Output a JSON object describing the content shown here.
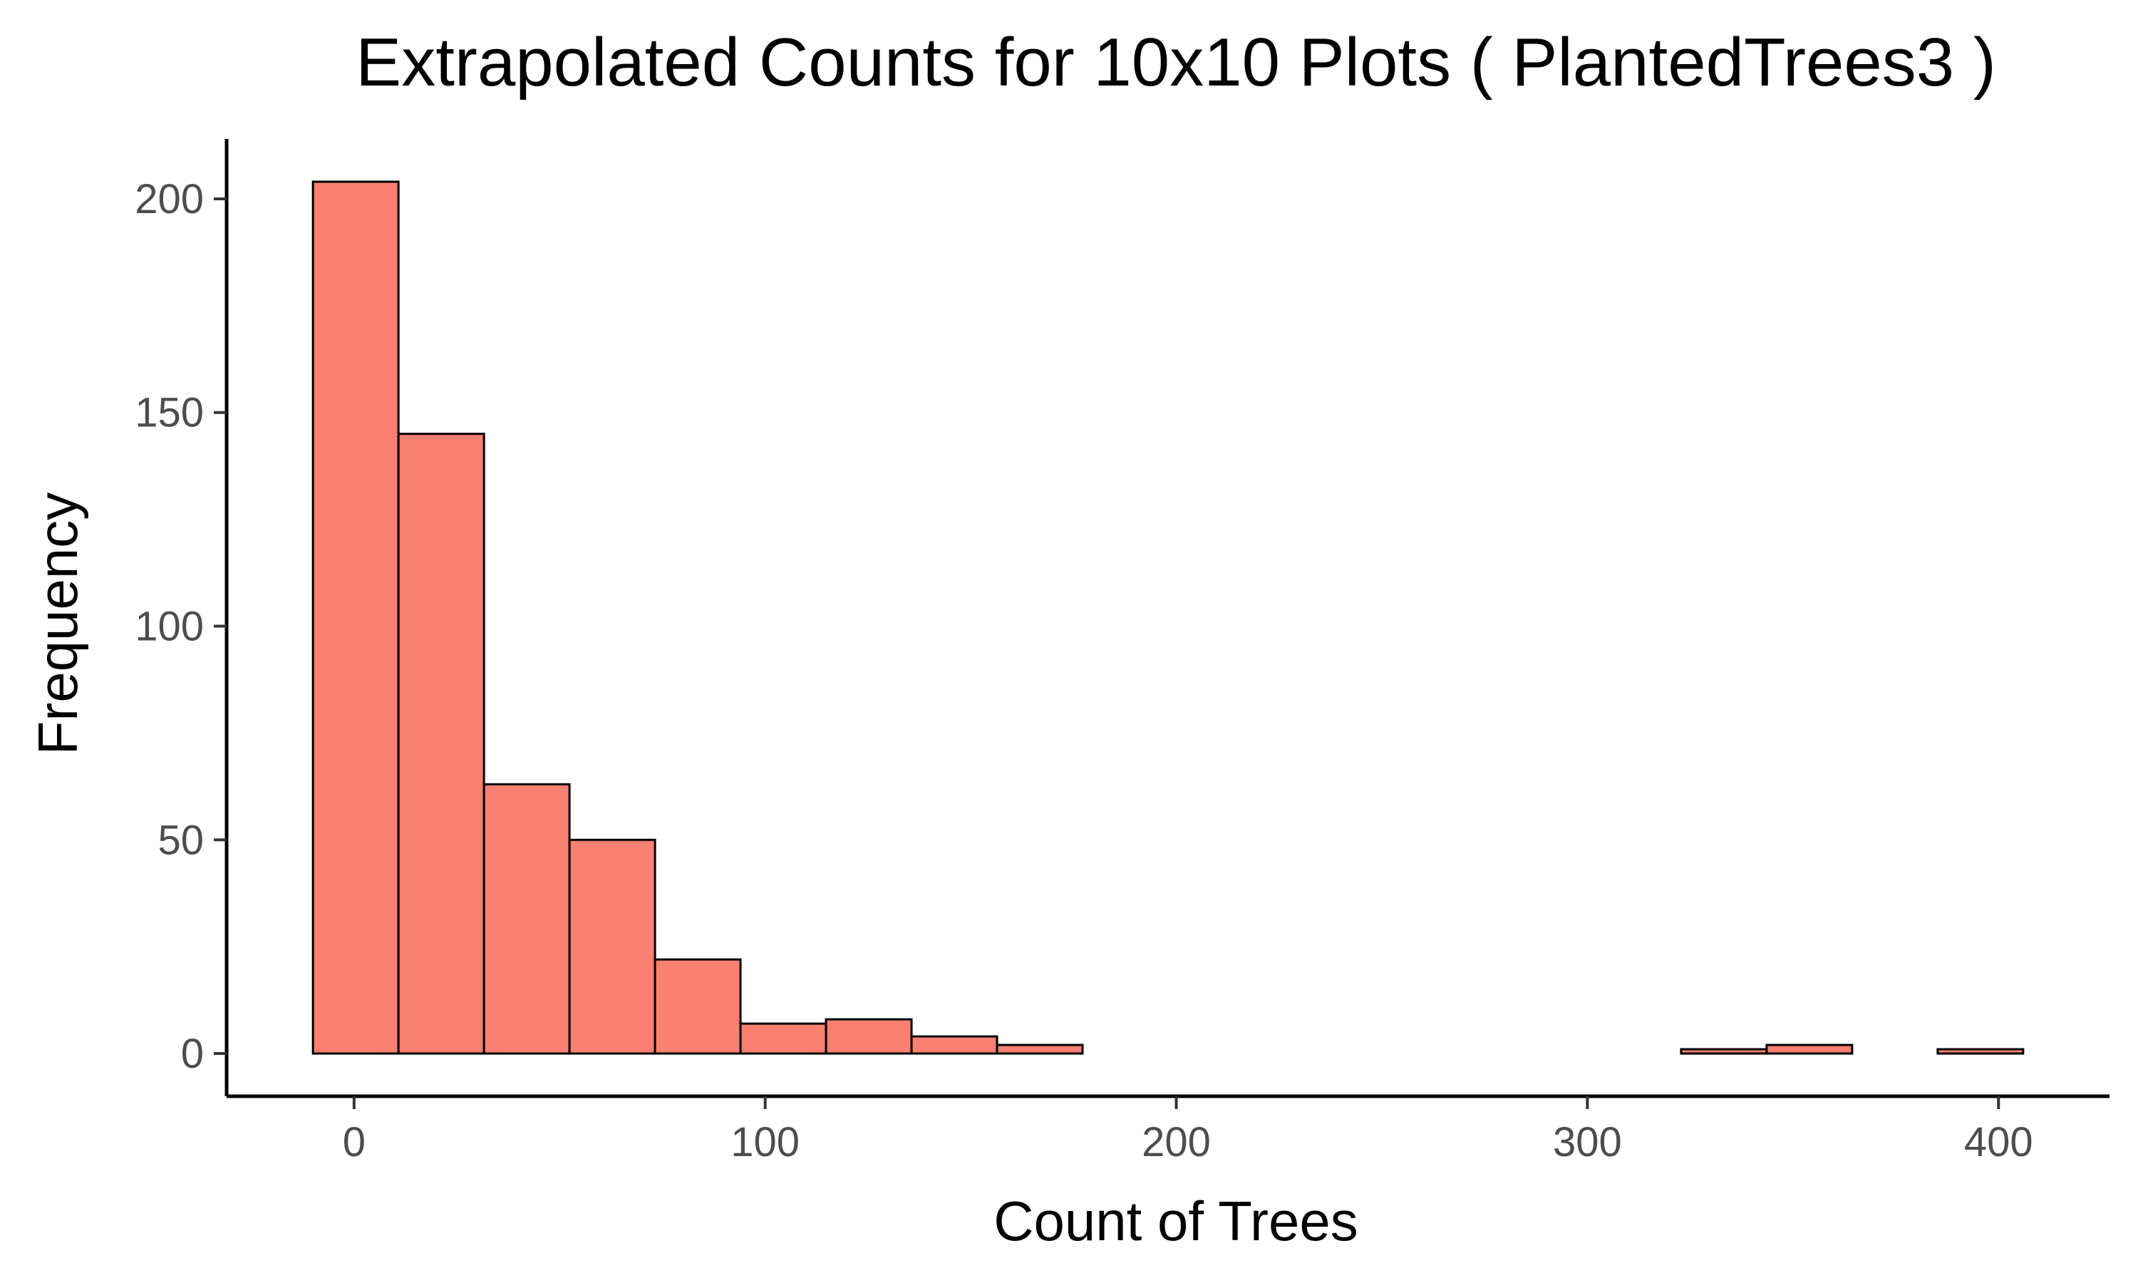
{
  "chart_data": {
    "type": "bar",
    "title": "Extrapolated Counts for 10x10 Plots ( PlantedTrees3 )",
    "xlabel": "Count of Trees",
    "ylabel": "Frequency",
    "bins": [
      {
        "x0": -10,
        "x1": 10.8,
        "count": 204
      },
      {
        "x0": 10.8,
        "x1": 31.6,
        "count": 145
      },
      {
        "x0": 31.6,
        "x1": 52.4,
        "count": 63
      },
      {
        "x0": 52.4,
        "x1": 73.2,
        "count": 50
      },
      {
        "x0": 73.2,
        "x1": 94.0,
        "count": 22
      },
      {
        "x0": 94.0,
        "x1": 114.8,
        "count": 7
      },
      {
        "x0": 114.8,
        "x1": 135.6,
        "count": 8
      },
      {
        "x0": 135.6,
        "x1": 156.4,
        "count": 4
      },
      {
        "x0": 156.4,
        "x1": 177.2,
        "count": 2
      },
      {
        "x0": 177.2,
        "x1": 198.0,
        "count": 0
      },
      {
        "x0": 198.0,
        "x1": 218.8,
        "count": 0
      },
      {
        "x0": 218.8,
        "x1": 239.6,
        "count": 0
      },
      {
        "x0": 239.6,
        "x1": 260.4,
        "count": 0
      },
      {
        "x0": 260.4,
        "x1": 281.2,
        "count": 0
      },
      {
        "x0": 281.2,
        "x1": 302.0,
        "count": 0
      },
      {
        "x0": 302.0,
        "x1": 322.8,
        "count": 0
      },
      {
        "x0": 322.8,
        "x1": 343.6,
        "count": 1
      },
      {
        "x0": 343.6,
        "x1": 364.4,
        "count": 2
      },
      {
        "x0": 364.4,
        "x1": 385.2,
        "count": 0
      },
      {
        "x0": 385.2,
        "x1": 406.0,
        "count": 1
      }
    ],
    "xlim": [
      -31,
      427
    ],
    "ylim": [
      -10,
      214
    ],
    "x_ticks": [
      0,
      100,
      200,
      300,
      400
    ],
    "y_ticks": [
      0,
      50,
      100,
      150,
      200
    ],
    "bar_color": "#fa8072",
    "bar_outline": "#000000",
    "grid": false,
    "legend": "none"
  }
}
